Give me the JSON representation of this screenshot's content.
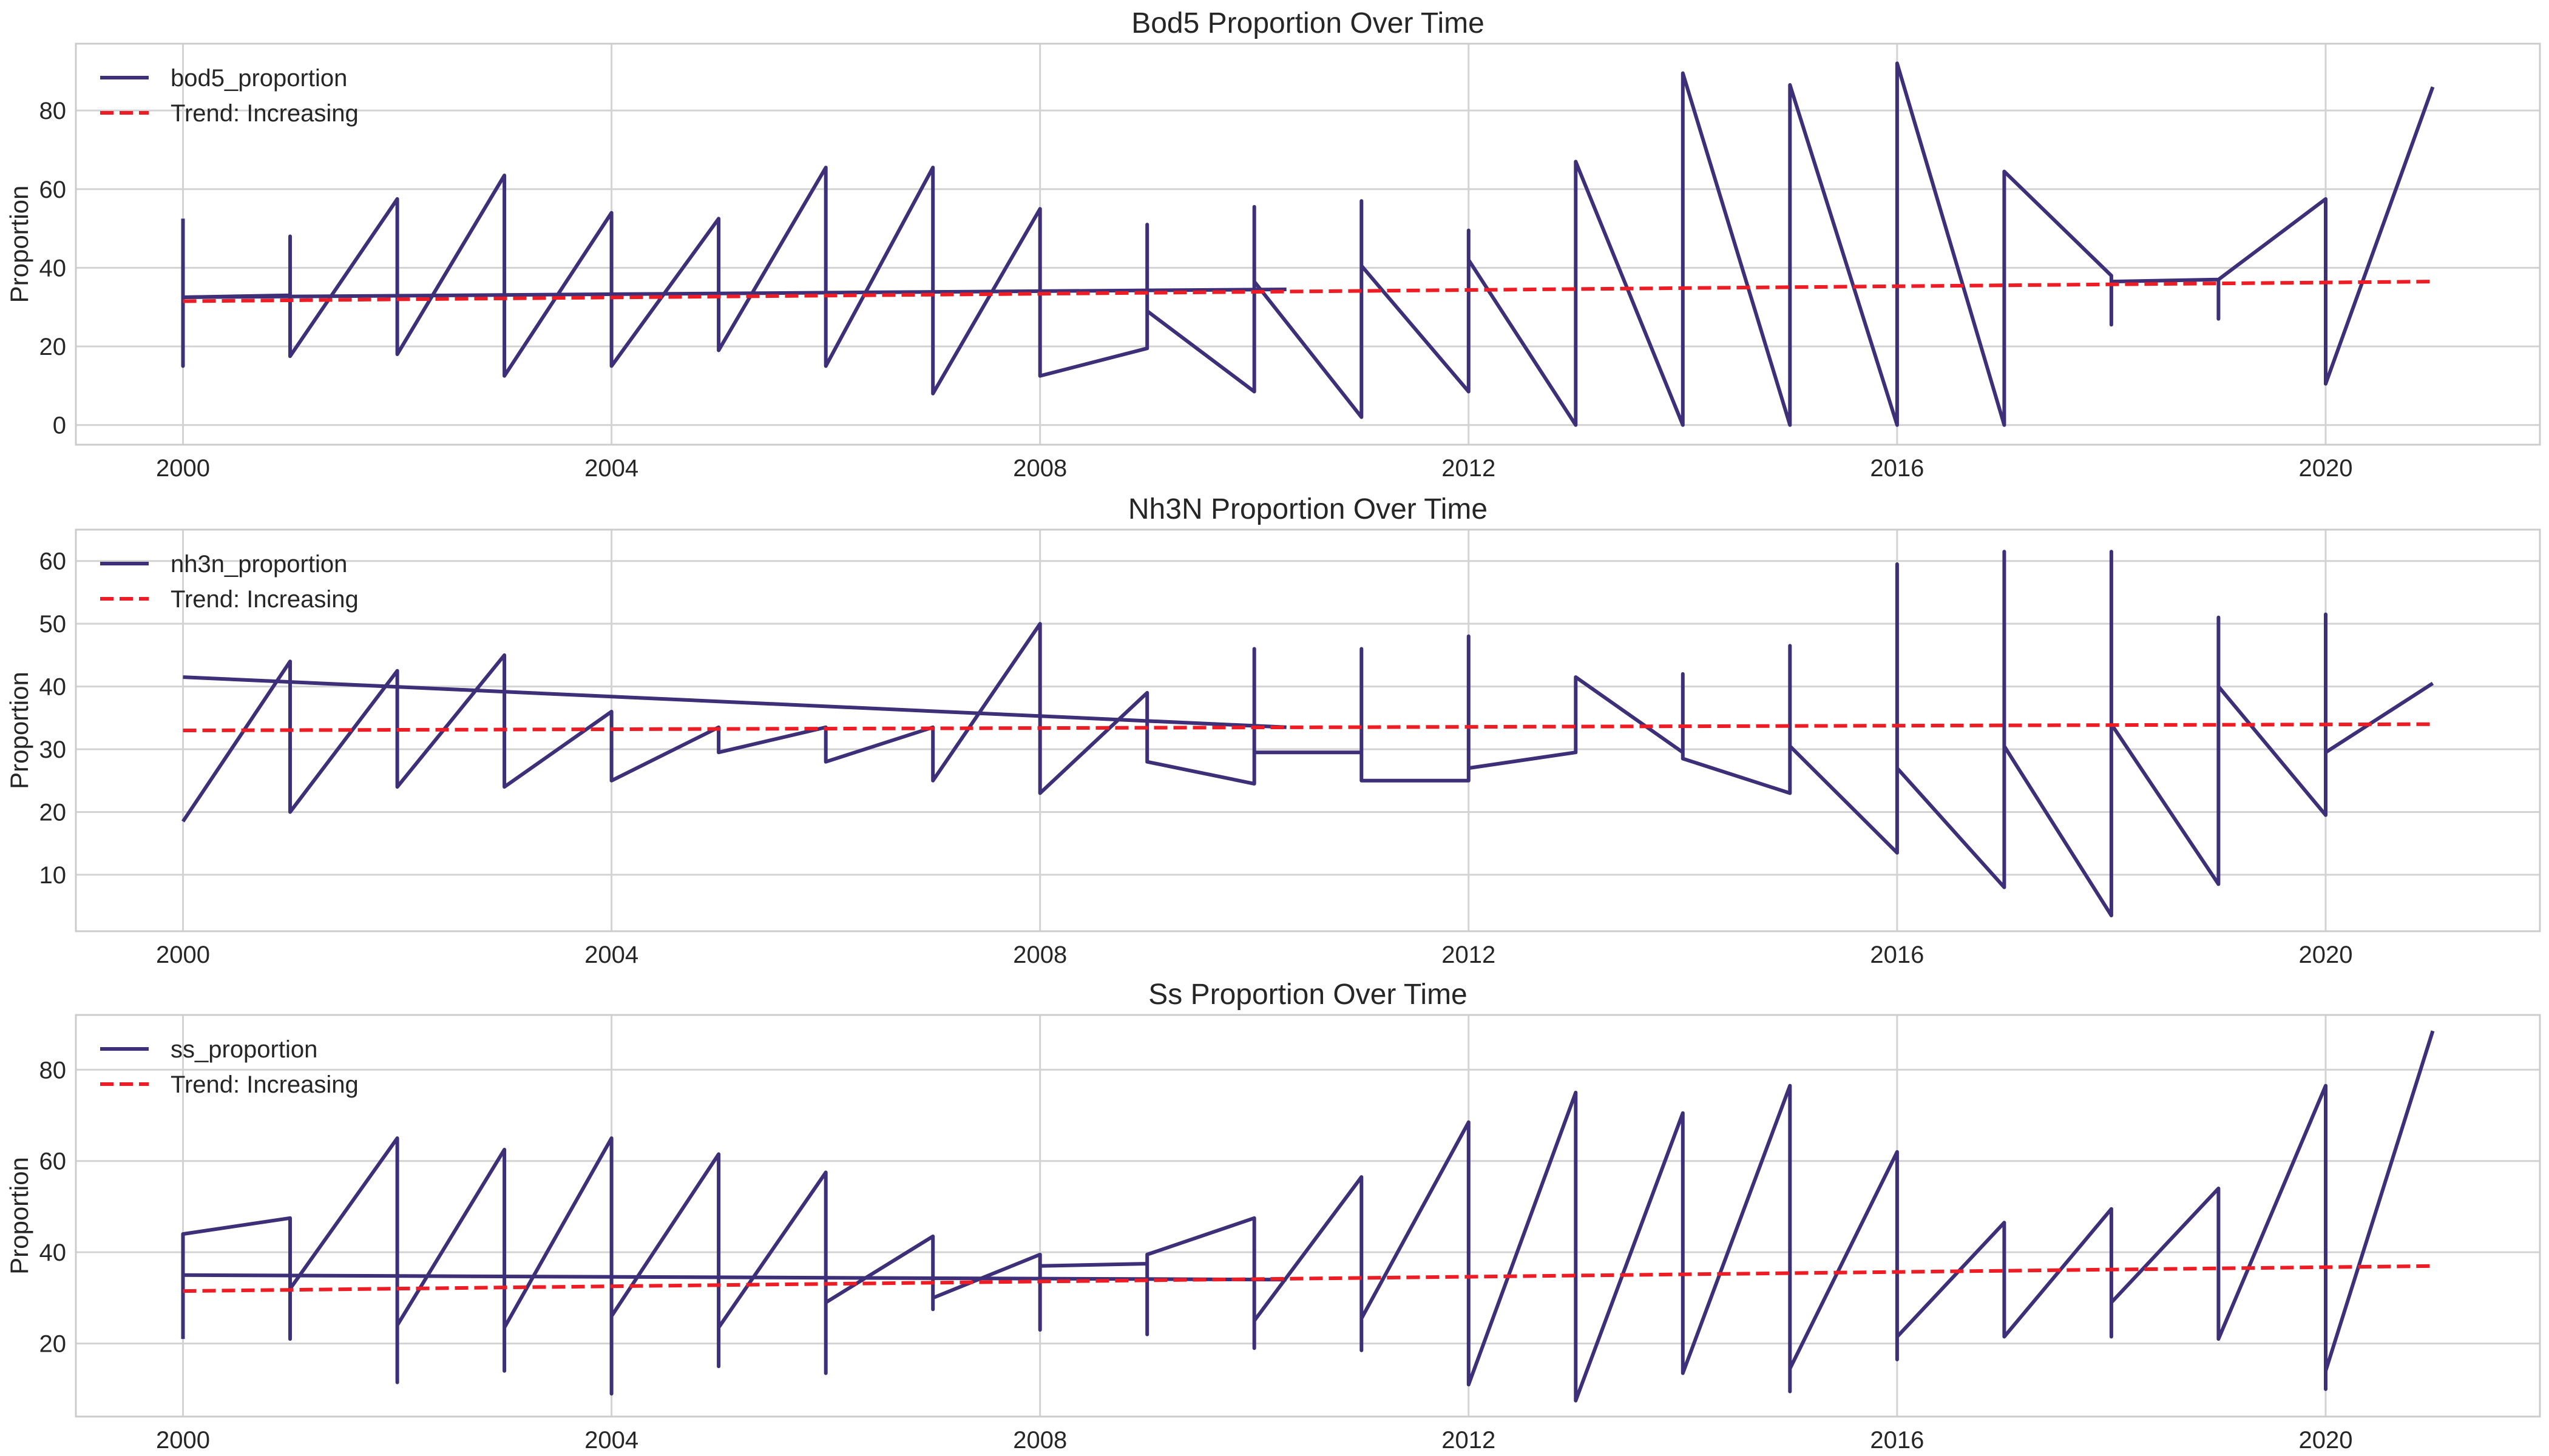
{
  "chart_data": [
    {
      "type": "line",
      "title": "Bod5 Proportion Over Time",
      "xlabel": "",
      "ylabel": "Proportion",
      "xlim": [
        1999.0,
        2022.0
      ],
      "ylim": [
        -5,
        97
      ],
      "xticks": [
        2000,
        2004,
        2008,
        2012,
        2016,
        2020
      ],
      "yticks": [
        0,
        20,
        40,
        60,
        80
      ],
      "grid": true,
      "legend_position": "top-left",
      "series": [
        {
          "name": "bod5_proportion",
          "color": "#3d2f78",
          "style": "solid",
          "x": [
            2000,
            2000,
            2000,
            2001,
            2001,
            2001,
            2002,
            2002,
            2003,
            2003,
            2004,
            2004,
            2005,
            2005,
            2006,
            2006,
            2007,
            2007,
            2008,
            2008,
            2009,
            2009,
            2009,
            2010,
            2010,
            2010,
            2011,
            2011,
            2011,
            2012,
            2012,
            2012,
            2013,
            2013,
            2014,
            2014,
            2015,
            2015,
            2016,
            2016,
            2017,
            2017,
            2018,
            2018,
            2018,
            2019,
            2019,
            2019,
            2020,
            2020,
            2021
          ],
          "y": [
            52.5,
            15.0,
            32.5,
            33.0,
            48.0,
            17.5,
            57.5,
            18.0,
            63.5,
            12.5,
            54.0,
            15.0,
            52.5,
            19.0,
            65.5,
            15.0,
            65.5,
            8.0,
            55.0,
            12.5,
            19.5,
            51.0,
            29.0,
            8.5,
            55.5,
            36.5,
            2.0,
            57.0,
            40.5,
            8.5,
            49.5,
            42.0,
            0.0,
            67.0,
            0.0,
            89.5,
            0.0,
            86.5,
            0.0,
            92.0,
            0.0,
            64.5,
            38.0,
            25.5,
            36.5,
            37.0,
            27.0,
            37.0,
            57.5,
            10.5,
            86.0
          ]
        },
        {
          "name": "bod5_proportion",
          "color": "#3d2f78",
          "style": "solid",
          "x": [
            2000,
            2010.3
          ],
          "y": [
            32.5,
            34.5
          ]
        },
        {
          "name": "Trend: Increasing",
          "color": "#ee1c25",
          "style": "dashed",
          "x": [
            2000,
            2021
          ],
          "y": [
            31.5,
            36.5
          ]
        }
      ]
    },
    {
      "type": "line",
      "title": "Nh3N Proportion Over Time",
      "xlabel": "",
      "ylabel": "Proportion",
      "xlim": [
        1999.0,
        2022.0
      ],
      "ylim": [
        1,
        65
      ],
      "xticks": [
        2000,
        2004,
        2008,
        2012,
        2016,
        2020
      ],
      "yticks": [
        10,
        20,
        30,
        40,
        50,
        60
      ],
      "grid": true,
      "legend_position": "top-left",
      "series": [
        {
          "name": "nh3n_proportion",
          "color": "#3d2f78",
          "style": "solid",
          "x": [
            2000,
            2001,
            2001,
            2002,
            2002,
            2003,
            2003,
            2004,
            2004,
            2005,
            2005,
            2006,
            2006,
            2007,
            2007,
            2008,
            2008,
            2009,
            2009,
            2010,
            2010,
            2010,
            2011,
            2011,
            2011,
            2012,
            2012,
            2012,
            2013,
            2013,
            2014,
            2014,
            2014,
            2015,
            2015,
            2015,
            2016,
            2016,
            2016,
            2017,
            2017,
            2017,
            2018,
            2018,
            2018,
            2019,
            2019,
            2019,
            2020,
            2020,
            2020,
            2021
          ],
          "y": [
            18.5,
            44.0,
            20.0,
            42.5,
            24.0,
            45.0,
            24.0,
            36.0,
            25.0,
            33.5,
            29.5,
            33.5,
            28.0,
            33.5,
            25.0,
            50.0,
            23.0,
            39.0,
            28.0,
            24.5,
            46.0,
            29.5,
            29.5,
            46.0,
            25.0,
            25.0,
            48.0,
            27.0,
            29.5,
            41.5,
            29.5,
            42.0,
            28.5,
            23.0,
            46.5,
            30.5,
            13.5,
            59.5,
            27.0,
            8.0,
            61.5,
            30.5,
            3.5,
            61.5,
            34.0,
            8.5,
            51.0,
            40.0,
            19.5,
            51.5,
            29.5,
            40.5
          ]
        },
        {
          "name": "nh3n_proportion",
          "color": "#3d2f78",
          "style": "solid",
          "x": [
            2000,
            2010.3
          ],
          "y": [
            41.5,
            33.5
          ]
        },
        {
          "name": "Trend: Increasing",
          "color": "#ee1c25",
          "style": "dashed",
          "x": [
            2000,
            2021
          ],
          "y": [
            33.0,
            34.0
          ]
        }
      ]
    },
    {
      "type": "line",
      "title": "Ss Proportion Over Time",
      "xlabel": "",
      "ylabel": "Proportion",
      "xlim": [
        1999.0,
        2022.0
      ],
      "ylim": [
        4,
        92
      ],
      "xticks": [
        2000,
        2004,
        2008,
        2012,
        2016,
        2020
      ],
      "yticks": [
        20,
        40,
        60,
        80
      ],
      "grid": true,
      "legend_position": "top-left",
      "series": [
        {
          "name": "ss_proportion",
          "color": "#3d2f78",
          "style": "solid",
          "x": [
            2000,
            2000,
            2001,
            2001,
            2001,
            2002,
            2002,
            2002,
            2003,
            2003,
            2003,
            2004,
            2004,
            2004,
            2005,
            2005,
            2005,
            2006,
            2006,
            2006,
            2007,
            2007,
            2007,
            2008,
            2008,
            2008,
            2009,
            2009,
            2009,
            2010,
            2010,
            2010,
            2011,
            2011,
            2011,
            2012,
            2012,
            2013,
            2013,
            2014,
            2014,
            2015,
            2015,
            2015,
            2016,
            2016,
            2016,
            2017,
            2017,
            2018,
            2018,
            2018,
            2019,
            2019,
            2020,
            2020,
            2020,
            2021
          ],
          "y": [
            21.0,
            44.0,
            47.5,
            21.0,
            32.0,
            65.0,
            11.5,
            24.0,
            62.5,
            14.0,
            23.5,
            65.0,
            9.0,
            26.0,
            61.5,
            15.0,
            23.5,
            57.5,
            13.5,
            29.0,
            43.5,
            27.5,
            30.0,
            39.5,
            23.0,
            37.0,
            37.5,
            22.0,
            39.5,
            47.5,
            19.0,
            25.0,
            56.5,
            18.5,
            25.5,
            68.5,
            11.0,
            75.0,
            7.5,
            70.5,
            13.5,
            76.5,
            9.5,
            14.5,
            62.0,
            16.5,
            21.5,
            46.5,
            21.5,
            49.5,
            21.5,
            29.0,
            54.0,
            21.0,
            76.5,
            10.0,
            14.0,
            88.5
          ]
        },
        {
          "name": "ss_proportion",
          "color": "#3d2f78",
          "style": "solid",
          "x": [
            2000,
            2010.3
          ],
          "y": [
            35.0,
            34.0
          ]
        },
        {
          "name": "Trend: Increasing",
          "color": "#ee1c25",
          "style": "dashed",
          "x": [
            2000,
            2021
          ],
          "y": [
            31.5,
            37.0
          ]
        }
      ]
    }
  ]
}
